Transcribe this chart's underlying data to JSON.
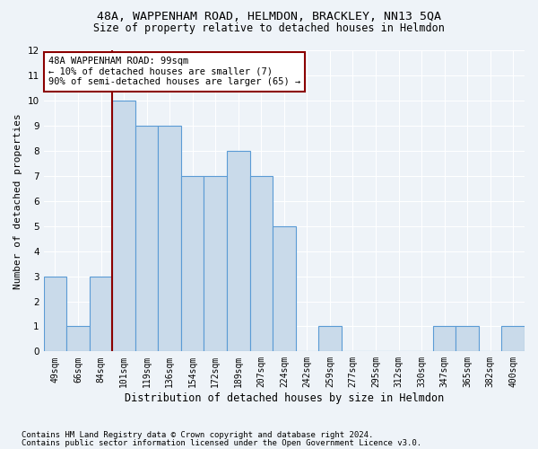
{
  "title1": "48A, WAPPENHAM ROAD, HELMDON, BRACKLEY, NN13 5QA",
  "title2": "Size of property relative to detached houses in Helmdon",
  "xlabel": "Distribution of detached houses by size in Helmdon",
  "ylabel": "Number of detached properties",
  "categories": [
    "49sqm",
    "66sqm",
    "84sqm",
    "101sqm",
    "119sqm",
    "136sqm",
    "154sqm",
    "172sqm",
    "189sqm",
    "207sqm",
    "224sqm",
    "242sqm",
    "259sqm",
    "277sqm",
    "295sqm",
    "312sqm",
    "330sqm",
    "347sqm",
    "365sqm",
    "382sqm",
    "400sqm"
  ],
  "values": [
    3,
    1,
    3,
    10,
    9,
    9,
    7,
    7,
    8,
    7,
    5,
    0,
    1,
    0,
    0,
    0,
    0,
    1,
    1,
    0,
    1
  ],
  "bar_color": "#c9daea",
  "bar_edge_color": "#5b9bd5",
  "vline_color": "#8b0000",
  "annotation_title": "48A WAPPENHAM ROAD: 99sqm",
  "annotation_line1": "← 10% of detached houses are smaller (7)",
  "annotation_line2": "90% of semi-detached houses are larger (65) →",
  "annotation_box_color": "#8b0000",
  "ylim": [
    0,
    12
  ],
  "yticks": [
    0,
    1,
    2,
    3,
    4,
    5,
    6,
    7,
    8,
    9,
    10,
    11,
    12
  ],
  "footnote1": "Contains HM Land Registry data © Crown copyright and database right 2024.",
  "footnote2": "Contains public sector information licensed under the Open Government Licence v3.0.",
  "bg_color": "#eef3f8",
  "plot_bg_color": "#eef3f8",
  "grid_color": "#ffffff",
  "title1_fontsize": 9.5,
  "title2_fontsize": 8.5,
  "axis_label_fontsize": 8,
  "tick_fontsize": 7,
  "footnote_fontsize": 6.5,
  "annotation_fontsize": 7.5
}
